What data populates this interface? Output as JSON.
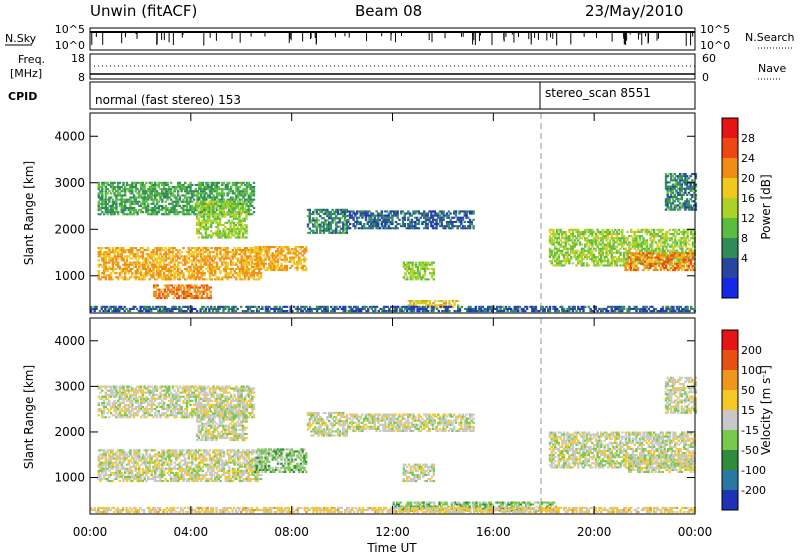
{
  "header": {
    "station": "Unwin (fitACF)",
    "beam": "Beam 08",
    "date": "23/May/2010"
  },
  "nsky_panel": {
    "left_label": "N.Sky",
    "left_ticks": [
      "10^5",
      "10^0"
    ],
    "right_ticks": [
      "10^5",
      "10^0"
    ],
    "right_label": "N.Search"
  },
  "freq_panel": {
    "left_label_1": "Freq.",
    "left_label_2": "[MHz]",
    "left_ticks": [
      "18",
      "8"
    ],
    "right_ticks": [
      "60",
      "0"
    ],
    "right_label": "Nave"
  },
  "cpid_panel": {
    "label": "CPID",
    "mode_1": "normal (fast stereo) 153",
    "mode_2": "stereo_scan 8551"
  },
  "x_axis": {
    "label": "Time UT",
    "ticks": [
      "00:00",
      "04:00",
      "08:00",
      "12:00",
      "16:00",
      "20:00",
      "00:00"
    ]
  },
  "power_panel": {
    "ylabel": "Slant Range [km]",
    "yticks": [
      "4000",
      "3000",
      "2000",
      "1000"
    ],
    "colorbar_label": "Power [dB]",
    "colorbar_ticks": [
      "28",
      "24",
      "20",
      "16",
      "12",
      "8",
      "4"
    ],
    "colors": [
      "#1428e6",
      "#2846a0",
      "#2f8c5a",
      "#5abe3c",
      "#aad228",
      "#f0c81e",
      "#f08c14",
      "#f04614",
      "#e61414"
    ]
  },
  "velocity_panel": {
    "ylabel": "Slant Range [km]",
    "yticks": [
      "4000",
      "3000",
      "2000",
      "1000"
    ],
    "colorbar_label": "Velocity [m s^-1]",
    "colorbar_ticks": [
      "200",
      "100",
      "50",
      "15",
      "-15",
      "-50",
      "-100",
      "-200"
    ],
    "colors": [
      "#1e32b4",
      "#2878a0",
      "#2f8c3c",
      "#78c84b",
      "#c8c8c8",
      "#f5c828",
      "#f0961e",
      "#e65014",
      "#e61414"
    ]
  },
  "chart_data": [
    {
      "type": "heatmap",
      "title": "Power",
      "xlabel": "Time UT",
      "ylabel": "Slant Range [km]",
      "xlim": [
        0,
        24
      ],
      "ylim": [
        200,
        4500
      ],
      "colorbar": {
        "label": "Power [dB]",
        "range": [
          0,
          30
        ]
      },
      "regions": [
        {
          "t0": 0.3,
          "t1": 6.8,
          "r0": 900,
          "r1": 1600,
          "level": 20
        },
        {
          "t0": 0.3,
          "t1": 6.5,
          "r0": 2300,
          "r1": 3000,
          "level": 10
        },
        {
          "t0": 2.5,
          "t1": 4.8,
          "r0": 500,
          "r1": 800,
          "level": 22
        },
        {
          "t0": 4.2,
          "t1": 6.2,
          "r0": 1800,
          "r1": 2600,
          "level": 14
        },
        {
          "t0": 6.5,
          "t1": 8.6,
          "r0": 1100,
          "r1": 1600,
          "level": 20
        },
        {
          "t0": 8.6,
          "t1": 10.2,
          "r0": 1900,
          "r1": 2400,
          "level": 8
        },
        {
          "t0": 10.2,
          "t1": 15.2,
          "r0": 2000,
          "r1": 2400,
          "level": 6
        },
        {
          "t0": 12.4,
          "t1": 13.6,
          "r0": 900,
          "r1": 1300,
          "level": 14
        },
        {
          "t0": 12.6,
          "t1": 14.6,
          "r0": 300,
          "r1": 450,
          "level": 18
        },
        {
          "t0": 18.2,
          "t1": 24.0,
          "r0": 1200,
          "r1": 2000,
          "level": 14
        },
        {
          "t0": 21.2,
          "t1": 24.0,
          "r0": 1100,
          "r1": 1500,
          "level": 22
        },
        {
          "t0": 22.8,
          "t1": 24.0,
          "r0": 2400,
          "r1": 3200,
          "level": 8
        },
        {
          "t0": 0.0,
          "t1": 24.0,
          "r0": 220,
          "r1": 330,
          "level": 6
        }
      ]
    },
    {
      "type": "heatmap",
      "title": "Velocity",
      "xlabel": "Time UT",
      "ylabel": "Slant Range [km]",
      "xlim": [
        0,
        24
      ],
      "ylim": [
        200,
        4500
      ],
      "colorbar": {
        "label": "Velocity [m s^-1]",
        "range": [
          -200,
          200
        ]
      },
      "regions": [
        {
          "t0": 0.3,
          "t1": 6.8,
          "r0": 900,
          "r1": 1600,
          "level": 0
        },
        {
          "t0": 0.3,
          "t1": 6.5,
          "r0": 2300,
          "r1": 3000,
          "level": 0
        },
        {
          "t0": 4.2,
          "t1": 6.2,
          "r0": 1800,
          "r1": 2600,
          "level": 0
        },
        {
          "t0": 6.5,
          "t1": 8.6,
          "r0": 1100,
          "r1": 1600,
          "level": -40
        },
        {
          "t0": 8.6,
          "t1": 10.2,
          "r0": 1900,
          "r1": 2400,
          "level": 0
        },
        {
          "t0": 10.2,
          "t1": 15.2,
          "r0": 2000,
          "r1": 2400,
          "level": 0
        },
        {
          "t0": 12.4,
          "t1": 13.6,
          "r0": 900,
          "r1": 1300,
          "level": 0
        },
        {
          "t0": 12.0,
          "t1": 18.5,
          "r0": 250,
          "r1": 450,
          "level": -40
        },
        {
          "t0": 18.2,
          "t1": 24.0,
          "r0": 1200,
          "r1": 2000,
          "level": 0
        },
        {
          "t0": 21.2,
          "t1": 24.0,
          "r0": 1100,
          "r1": 1500,
          "level": 0
        },
        {
          "t0": 22.8,
          "t1": 24.0,
          "r0": 2400,
          "r1": 3200,
          "level": 0
        },
        {
          "t0": 0.0,
          "t1": 24.0,
          "r0": 220,
          "r1": 330,
          "level": 30
        }
      ]
    }
  ]
}
